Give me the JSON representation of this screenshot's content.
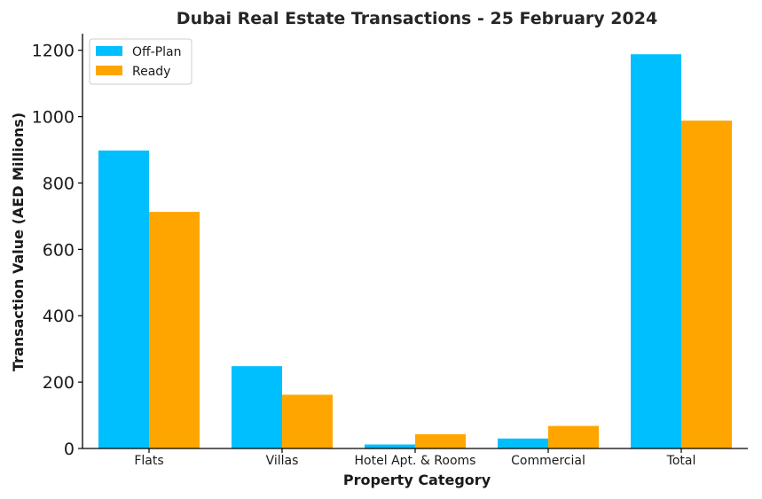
{
  "chart_data": {
    "type": "bar",
    "title": "Dubai Real Estate Transactions - 25 February 2024",
    "xlabel": "Property Category",
    "ylabel": "Transaction Value (AED Millions)",
    "categories": [
      "Flats",
      "Villas",
      "Hotel Apt. & Rooms",
      "Commercial",
      "Total"
    ],
    "series": [
      {
        "name": "Off-Plan",
        "color": "#00BFFF",
        "values": [
          898,
          248,
          12,
          30,
          1188
        ]
      },
      {
        "name": "Ready",
        "color": "#FFA500",
        "values": [
          713,
          162,
          43,
          68,
          988
        ]
      }
    ],
    "ylim": [
      0,
      1250
    ],
    "yticks": [
      0,
      200,
      400,
      600,
      800,
      1000,
      1200
    ],
    "grid": false,
    "legend_position": "top-left"
  }
}
